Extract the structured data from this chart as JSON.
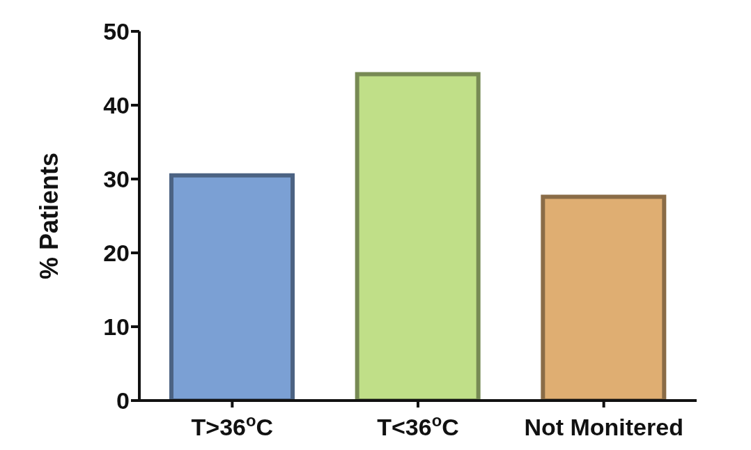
{
  "chart_data": {
    "type": "bar",
    "ylabel": "% Patients",
    "categories": [
      "T>36$^{o}$C",
      "T<36$^{o}$C",
      "Not Monitered"
    ],
    "values": [
      30.5,
      44.2,
      27.6
    ],
    "colors": [
      "#7ba0d4",
      "#c0df88",
      "#dfae72"
    ],
    "ylim": [
      0,
      50
    ],
    "yticks": [
      0,
      10,
      20,
      30,
      40,
      50
    ],
    "grid": false,
    "legend": false
  }
}
